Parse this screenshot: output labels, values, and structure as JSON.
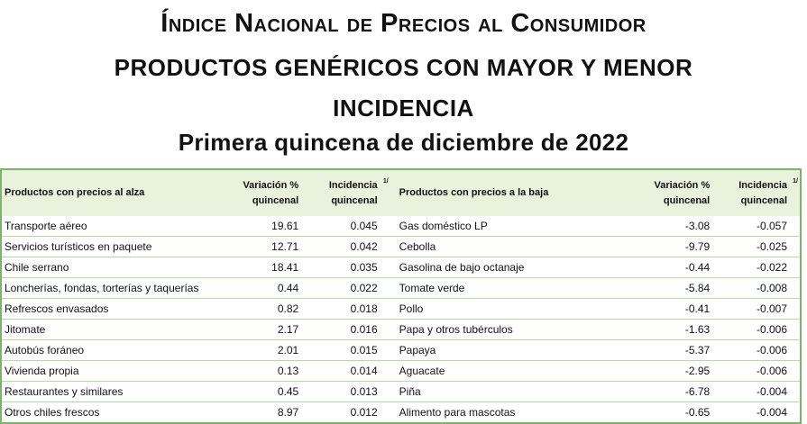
{
  "header": {
    "title_line1": "Índice Nacional de Precios al Consumidor",
    "title_line2": "PRODUCTOS GENÉRICOS CON MAYOR Y MENOR",
    "title_line3": "INCIDENCIA",
    "subtitle": "Primera quincena de diciembre de 2022"
  },
  "table": {
    "headers": {
      "alza_products": "Productos con precios al alza",
      "alza_variation_l1": "Variación %",
      "alza_variation_l2": "quincenal",
      "alza_incidence_l1": "Incidencia",
      "alza_incidence_l2": "quincenal",
      "alza_incidence_note": "1/",
      "baja_products": "Productos con precios a la baja",
      "baja_variation_l1": "Variación %",
      "baja_variation_l2": "quincenal",
      "baja_incidence_l1": "Incidencia",
      "baja_incidence_l2": "quincenal",
      "baja_incidence_note": "1/"
    },
    "rows": [
      {
        "alza": "Transporte aéreo",
        "alza_var": "19.61",
        "alza_inc": "0.045",
        "baja": "Gas doméstico LP",
        "baja_var": "-3.08",
        "baja_inc": "-0.057"
      },
      {
        "alza": "Servicios turísticos en paquete",
        "alza_var": "12.71",
        "alza_inc": "0.042",
        "baja": "Cebolla",
        "baja_var": "-9.79",
        "baja_inc": "-0.025"
      },
      {
        "alza": "Chile serrano",
        "alza_var": "18.41",
        "alza_inc": "0.035",
        "baja": "Gasolina de bajo octanaje",
        "baja_var": "-0.44",
        "baja_inc": "-0.022"
      },
      {
        "alza": "Loncherías, fondas, torterías y taquerías",
        "alza_var": "0.44",
        "alza_inc": "0.022",
        "baja": "Tomate verde",
        "baja_var": "-5.84",
        "baja_inc": "-0.008"
      },
      {
        "alza": "Refrescos envasados",
        "alza_var": "0.82",
        "alza_inc": "0.018",
        "baja": "Pollo",
        "baja_var": "-0.41",
        "baja_inc": "-0.007"
      },
      {
        "alza": "Jitomate",
        "alza_var": "2.17",
        "alza_inc": "0.016",
        "baja": "Papa y otros tubérculos",
        "baja_var": "-1.63",
        "baja_inc": "-0.006"
      },
      {
        "alza": "Autobús foráneo",
        "alza_var": "2.01",
        "alza_inc": "0.015",
        "baja": "Papaya",
        "baja_var": "-5.37",
        "baja_inc": "-0.006"
      },
      {
        "alza": "Vivienda propia",
        "alza_var": "0.13",
        "alza_inc": "0.014",
        "baja": "Aguacate",
        "baja_var": "-2.95",
        "baja_inc": "-0.006"
      },
      {
        "alza": "Restaurantes y similares",
        "alza_var": "0.45",
        "alza_inc": "0.013",
        "baja": "Piña",
        "baja_var": "-6.78",
        "baja_inc": "-0.004"
      },
      {
        "alza": "Otros chiles frescos",
        "alza_var": "8.97",
        "alza_inc": "0.012",
        "baja": "Alimento para mascotas",
        "baja_var": "-0.65",
        "baja_inc": "-0.004"
      }
    ]
  }
}
